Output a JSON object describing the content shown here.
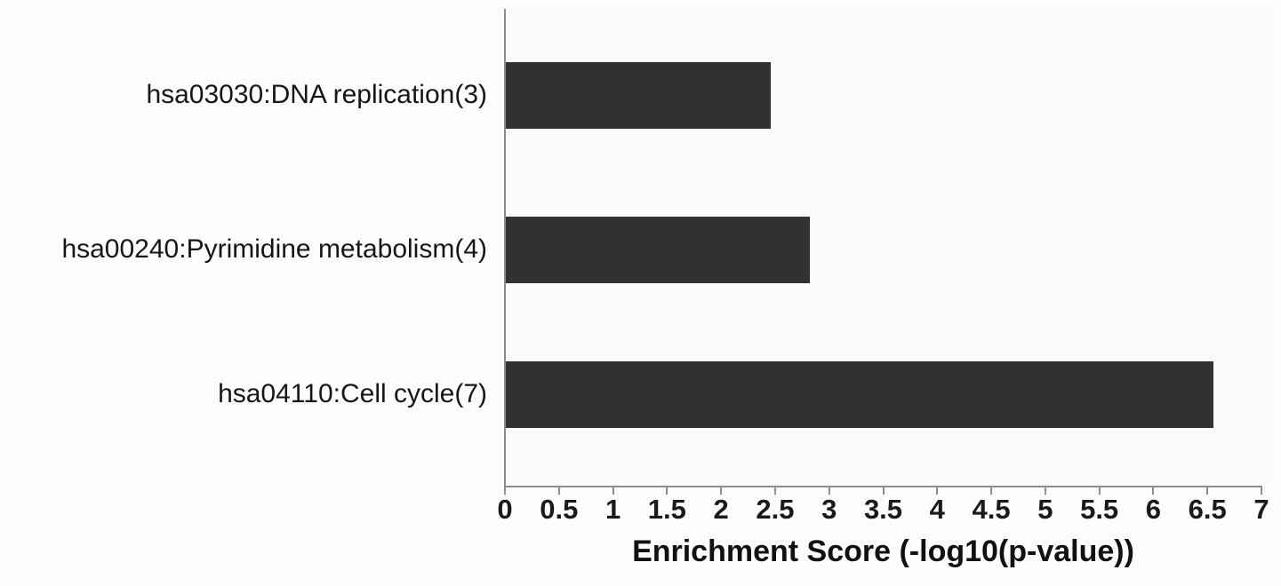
{
  "chart_data": {
    "type": "bar",
    "orientation": "horizontal",
    "categories": [
      "hsa03030:DNA replication(3)",
      "hsa00240:Pyrimidine metabolism(4)",
      "hsa04110:Cell cycle(7)"
    ],
    "values": [
      2.45,
      2.81,
      6.55
    ],
    "xlabel": "Enrichment Score (-log10(p-value))",
    "xlim": [
      0,
      7
    ],
    "xticks": [
      0,
      0.5,
      1,
      1.5,
      2,
      2.5,
      3,
      3.5,
      4,
      4.5,
      5,
      5.5,
      6,
      6.5,
      7
    ],
    "xtick_labels": [
      "0",
      "0.5",
      "1",
      "1.5",
      "2",
      "2.5",
      "3",
      "3.5",
      "4",
      "4.5",
      "5",
      "5.5",
      "6",
      "6.5",
      "7"
    ],
    "grid": false,
    "legend": null,
    "bar_color": "#313131",
    "axis_color": "#8c8c8c",
    "text_color": "#161616",
    "background_color": "#fdfdfd"
  }
}
